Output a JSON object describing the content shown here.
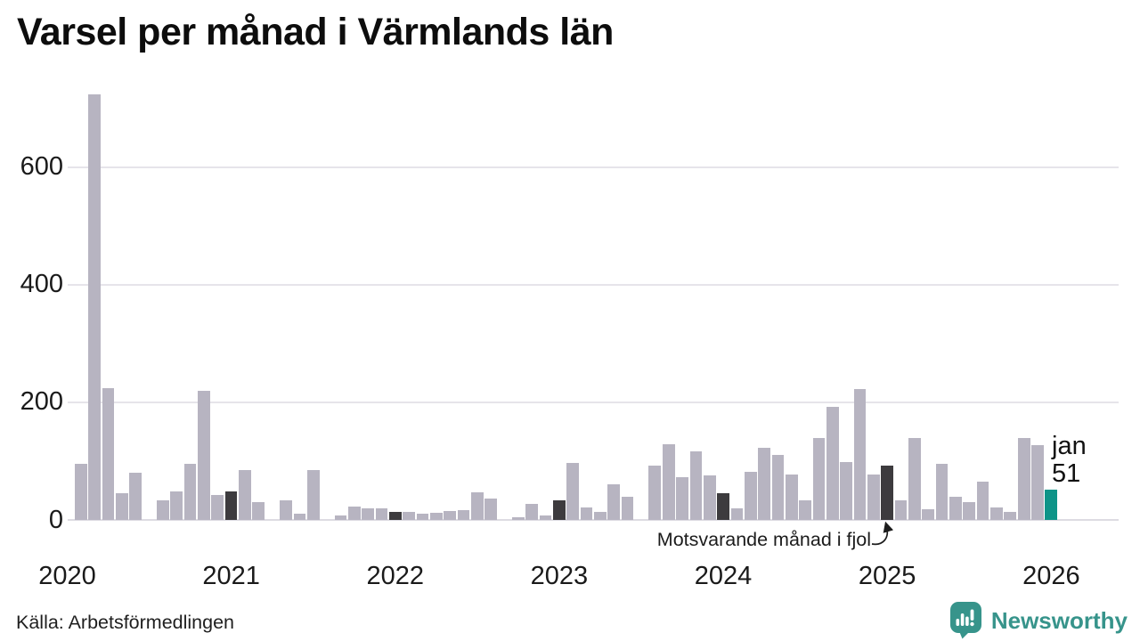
{
  "title": "Varsel per månad i Värmlands län",
  "source": "Källa: Arbetsförmedlingen",
  "annotation": {
    "text": "Motsvarande månad i fjol"
  },
  "current_label": {
    "month": "jan",
    "value": "51"
  },
  "logo": {
    "brand": "Newsworthy",
    "icon": "newsworthy-pin-barchart-icon",
    "color": "#37948b"
  },
  "chart_data": {
    "type": "bar",
    "title": "Varsel per månad i Värmlands län",
    "xlabel": "",
    "ylabel": "",
    "ylim": [
      0,
      730
    ],
    "y_ticks": [
      0,
      200,
      400,
      600
    ],
    "x_year_ticks": [
      "2020",
      "2021",
      "2022",
      "2023",
      "2024",
      "2025",
      "2026"
    ],
    "grid": "horizontal",
    "legend": "none",
    "colors": {
      "bar": "#b7b4c1",
      "highlight_dark": "#3d3b3e",
      "current": "#0e9488",
      "grid": "#e6e4ea"
    },
    "highlight_note": "dark bars = january of each year; teal bar = current month jan 2026",
    "series": [
      [
        "2020-01",
        0,
        "n"
      ],
      [
        "2020-02",
        95,
        "n"
      ],
      [
        "2020-03",
        724,
        "n"
      ],
      [
        "2020-04",
        224,
        "n"
      ],
      [
        "2020-05",
        45,
        "n"
      ],
      [
        "2020-06",
        80,
        "n"
      ],
      [
        "2020-07",
        0,
        "n"
      ],
      [
        "2020-08",
        34,
        "n"
      ],
      [
        "2020-09",
        49,
        "n"
      ],
      [
        "2020-10",
        95,
        "n"
      ],
      [
        "2020-11",
        220,
        "n"
      ],
      [
        "2020-12",
        42,
        "n"
      ],
      [
        "2021-01",
        48,
        "d"
      ],
      [
        "2021-02",
        85,
        "n"
      ],
      [
        "2021-03",
        31,
        "n"
      ],
      [
        "2021-04",
        0,
        "n"
      ],
      [
        "2021-05",
        33,
        "n"
      ],
      [
        "2021-06",
        10,
        "n"
      ],
      [
        "2021-07",
        85,
        "n"
      ],
      [
        "2021-08",
        0,
        "n"
      ],
      [
        "2021-09",
        7,
        "n"
      ],
      [
        "2021-10",
        23,
        "n"
      ],
      [
        "2021-11",
        19,
        "n"
      ],
      [
        "2021-12",
        19,
        "n"
      ],
      [
        "2022-01",
        13,
        "d"
      ],
      [
        "2022-02",
        14,
        "n"
      ],
      [
        "2022-03",
        11,
        "n"
      ],
      [
        "2022-04",
        12,
        "n"
      ],
      [
        "2022-05",
        15,
        "n"
      ],
      [
        "2022-06",
        17,
        "n"
      ],
      [
        "2022-07",
        47,
        "n"
      ],
      [
        "2022-08",
        36,
        "n"
      ],
      [
        "2022-09",
        0,
        "n"
      ],
      [
        "2022-10",
        5,
        "n"
      ],
      [
        "2022-11",
        28,
        "n"
      ],
      [
        "2022-12",
        8,
        "n"
      ],
      [
        "2023-01",
        34,
        "d"
      ],
      [
        "2023-02",
        97,
        "n"
      ],
      [
        "2023-03",
        21,
        "n"
      ],
      [
        "2023-04",
        14,
        "n"
      ],
      [
        "2023-05",
        61,
        "n"
      ],
      [
        "2023-06",
        39,
        "n"
      ],
      [
        "2023-07",
        0,
        "n"
      ],
      [
        "2023-08",
        93,
        "n"
      ],
      [
        "2023-09",
        128,
        "n"
      ],
      [
        "2023-10",
        73,
        "n"
      ],
      [
        "2023-11",
        117,
        "n"
      ],
      [
        "2023-12",
        76,
        "n"
      ],
      [
        "2024-01",
        46,
        "d"
      ],
      [
        "2024-02",
        19,
        "n"
      ],
      [
        "2024-03",
        82,
        "n"
      ],
      [
        "2024-04",
        122,
        "n"
      ],
      [
        "2024-05",
        110,
        "n"
      ],
      [
        "2024-06",
        77,
        "n"
      ],
      [
        "2024-07",
        34,
        "n"
      ],
      [
        "2024-08",
        139,
        "n"
      ],
      [
        "2024-09",
        193,
        "n"
      ],
      [
        "2024-10",
        99,
        "n"
      ],
      [
        "2024-11",
        222,
        "n"
      ],
      [
        "2024-12",
        78,
        "n"
      ],
      [
        "2025-01",
        92,
        "d"
      ],
      [
        "2025-02",
        33,
        "n"
      ],
      [
        "2025-03",
        139,
        "n"
      ],
      [
        "2025-04",
        18,
        "n"
      ],
      [
        "2025-05",
        95,
        "n"
      ],
      [
        "2025-06",
        39,
        "n"
      ],
      [
        "2025-07",
        30,
        "n"
      ],
      [
        "2025-08",
        65,
        "n"
      ],
      [
        "2025-09",
        21,
        "n"
      ],
      [
        "2025-10",
        13,
        "n"
      ],
      [
        "2025-11",
        140,
        "n"
      ],
      [
        "2025-12",
        127,
        "n"
      ],
      [
        "2026-01",
        51,
        "c"
      ]
    ]
  }
}
